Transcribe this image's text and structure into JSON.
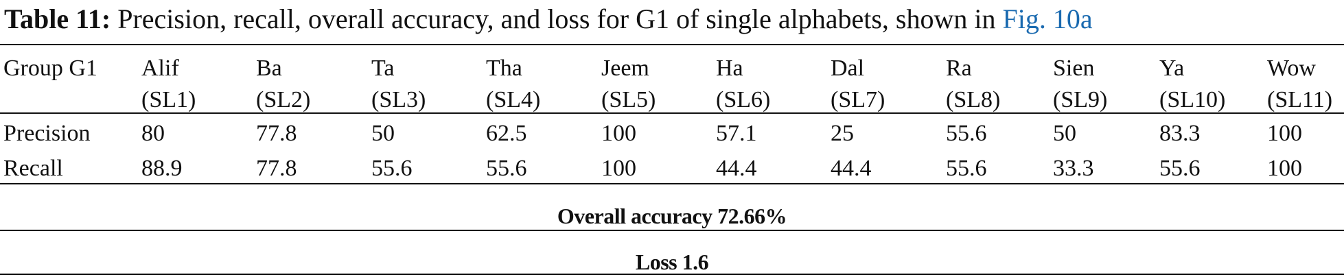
{
  "caption": {
    "label": "Table 11:",
    "text": "Precision, recall, overall accuracy, and loss for G1 of single alphabets, shown in",
    "link": "Fig. 10a"
  },
  "table": {
    "corner": "Group G1",
    "columns": [
      {
        "name": "Alif",
        "code": "(SL1)"
      },
      {
        "name": "Ba",
        "code": "(SL2)"
      },
      {
        "name": "Ta",
        "code": "(SL3)"
      },
      {
        "name": "Tha",
        "code": "(SL4)"
      },
      {
        "name": "Jeem",
        "code": "(SL5)"
      },
      {
        "name": "Ha",
        "code": "(SL6)"
      },
      {
        "name": "Dal",
        "code": "(SL7)"
      },
      {
        "name": "Ra",
        "code": "(SL8)"
      },
      {
        "name": "Sien",
        "code": "(SL9)"
      },
      {
        "name": "Ya",
        "code": "(SL10)"
      },
      {
        "name": "Wow",
        "code": "(SL11)"
      }
    ],
    "rows": [
      {
        "label": "Precision",
        "values": [
          80,
          77.8,
          50,
          62.5,
          100,
          57.1,
          25,
          55.6,
          50,
          83.3,
          100
        ]
      },
      {
        "label": "Recall",
        "values": [
          88.9,
          77.8,
          55.6,
          55.6,
          100,
          44.4,
          44.4,
          55.6,
          33.3,
          55.6,
          100
        ]
      }
    ],
    "footer": [
      "Overall accuracy 72.66%",
      "Loss 1.6"
    ]
  }
}
